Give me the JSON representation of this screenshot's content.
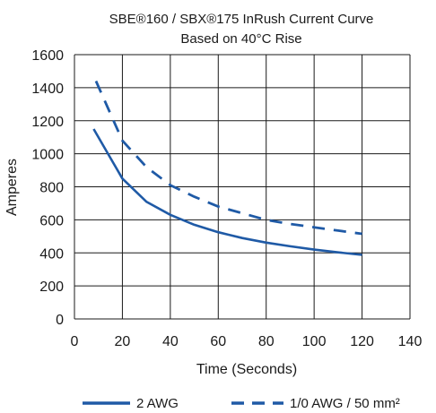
{
  "chart_data": {
    "type": "line",
    "title_lines": [
      "SBE®160 / SBX®175 InRush Current Curve",
      "Based on 40°C Rise"
    ],
    "xlabel": "Time (Seconds)",
    "ylabel": "Amperes",
    "xlim": [
      0,
      140
    ],
    "ylim": [
      0,
      1600
    ],
    "x_ticks": [
      0,
      20,
      40,
      60,
      80,
      100,
      120,
      140
    ],
    "y_ticks": [
      0,
      200,
      400,
      600,
      800,
      1000,
      1200,
      1400,
      1600
    ],
    "grid": true,
    "legend_position": "bottom",
    "colors": {
      "series": "#1f5aa6",
      "grid": "#1a1a1a"
    },
    "series": [
      {
        "name": "2 AWG",
        "style": "solid",
        "x": [
          8,
          20,
          30,
          40,
          50,
          60,
          70,
          80,
          90,
          100,
          110,
          120
        ],
        "y": [
          1150,
          850,
          710,
          630,
          570,
          525,
          490,
          462,
          440,
          420,
          403,
          388
        ]
      },
      {
        "name": "1/0 AWG / 50 mm²",
        "style": "dashed",
        "x": [
          9,
          20,
          30,
          40,
          50,
          60,
          70,
          80,
          90,
          100,
          110,
          120
        ],
        "y": [
          1440,
          1080,
          920,
          810,
          740,
          680,
          640,
          600,
          575,
          555,
          535,
          515
        ]
      }
    ]
  }
}
